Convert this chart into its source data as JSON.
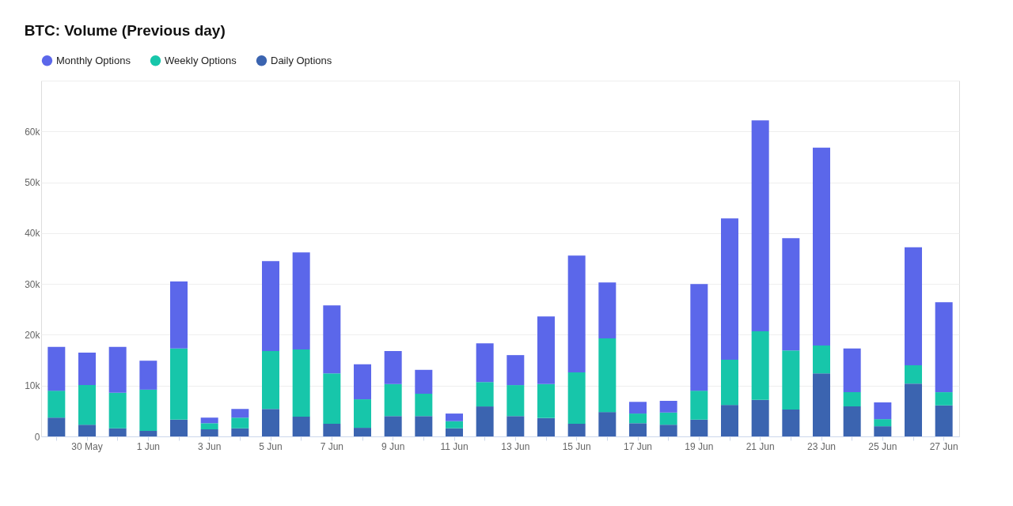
{
  "chart_data": {
    "type": "bar",
    "title": "BTC: Volume (Previous day)",
    "stacked": true,
    "legend": "top left",
    "grid": "y",
    "marker": "circle",
    "categories": [
      null,
      "30 May",
      null,
      "1 Jun",
      null,
      "3 Jun",
      null,
      "5 Jun",
      null,
      "7 Jun",
      null,
      "9 Jun",
      null,
      "11 Jun",
      null,
      "13 Jun",
      null,
      "15 Jun",
      null,
      "17 Jun",
      null,
      "19 Jun",
      null,
      "21 Jun",
      null,
      "23 Jun",
      null,
      "25 Jun",
      null,
      "27 Jun"
    ],
    "ylim": [
      0,
      70000
    ],
    "yticks": [
      {
        "value": 0,
        "label": "0"
      },
      {
        "value": 10000,
        "label": "10k"
      },
      {
        "value": 20000,
        "label": "20k"
      },
      {
        "value": 30000,
        "label": "30k"
      },
      {
        "value": 40000,
        "label": "40k"
      },
      {
        "value": 50000,
        "label": "50k"
      },
      {
        "value": 60000,
        "label": "60k"
      },
      {
        "value": 70000,
        "label": null
      }
    ],
    "series": [
      {
        "name": "Daily Options",
        "color": "#3b64b0",
        "values": [
          3700,
          2300,
          1600,
          1100,
          3300,
          1400,
          1600,
          5400,
          3900,
          2500,
          1700,
          4000,
          4000,
          1600,
          5900,
          4000,
          3600,
          2500,
          4800,
          2600,
          2300,
          3300,
          6200,
          7200,
          5300,
          12400,
          5900,
          2000,
          10400,
          6100
        ]
      },
      {
        "name": "Weekly Options",
        "color": "#17c6aa",
        "values": [
          5300,
          7800,
          7000,
          8100,
          14000,
          1200,
          2100,
          11400,
          13200,
          9900,
          5600,
          6300,
          4400,
          1400,
          4800,
          6100,
          6700,
          10100,
          14500,
          1900,
          2400,
          5700,
          8900,
          13500,
          11600,
          5500,
          2800,
          1400,
          3600,
          2600
        ]
      },
      {
        "name": "Monthly Options",
        "color": "#5b67ea",
        "values": [
          8600,
          6400,
          9000,
          5700,
          13200,
          1100,
          1700,
          17700,
          19100,
          13400,
          6900,
          6500,
          4700,
          1500,
          7600,
          5900,
          13300,
          23000,
          11000,
          2300,
          2300,
          21000,
          27800,
          41500,
          22100,
          38900,
          8600,
          3300,
          23200,
          17700
        ]
      }
    ]
  }
}
